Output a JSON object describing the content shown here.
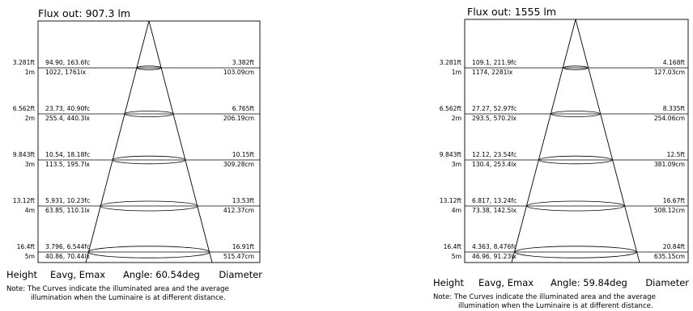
{
  "footer_labels": {
    "height": "Height",
    "eavg_emax": "Eavg, Emax",
    "diameter": "Diameter"
  },
  "note": {
    "line1": "Note: The Curves indicate the illuminated area and the average",
    "line2": "illumination when the Luminaire is at different distance."
  },
  "diagrams": [
    {
      "flux_label": "Flux out: 907.3 lm",
      "angle_label": "Angle: 60.54deg",
      "rows": [
        {
          "height_ft": "3.281ft",
          "height_m": "1m",
          "fc": "94.90, 163.6fc",
          "lx": "1022, 1761lx",
          "dia_ft": "3.382ft",
          "dia_cm": "103.09cm"
        },
        {
          "height_ft": "6.562ft",
          "height_m": "2m",
          "fc": "23.73, 40.90fc",
          "lx": "255.4, 440.3lx",
          "dia_ft": "6.765ft",
          "dia_cm": "206.19cm"
        },
        {
          "height_ft": "9.843ft",
          "height_m": "3m",
          "fc": "10.54, 18.18fc",
          "lx": "113.5, 195.7lx",
          "dia_ft": "10.15ft",
          "dia_cm": "309.28cm"
        },
        {
          "height_ft": "13.12ft",
          "height_m": "4m",
          "fc": "5.931, 10.23fc",
          "lx": "63.85, 110.1lx",
          "dia_ft": "13.53ft",
          "dia_cm": "412.37cm"
        },
        {
          "height_ft": "16.4ft",
          "height_m": "5m",
          "fc": "3.796, 6.544fc",
          "lx": "40.86, 70.44lx",
          "dia_ft": "16.91ft",
          "dia_cm": "515.47cm"
        }
      ]
    },
    {
      "flux_label": "Flux out: 1555 lm",
      "angle_label": "Angle: 59.84deg",
      "rows": [
        {
          "height_ft": "3.281ft",
          "height_m": "1m",
          "fc": "109.1, 211.9fc",
          "lx": "1174, 2281lx",
          "dia_ft": "4.168ft",
          "dia_cm": "127.03cm"
        },
        {
          "height_ft": "6.562ft",
          "height_m": "2m",
          "fc": "27.27, 52.97fc",
          "lx": "293.5, 570.2lx",
          "dia_ft": "8.335ft",
          "dia_cm": "254.06cm"
        },
        {
          "height_ft": "9.843ft",
          "height_m": "3m",
          "fc": "12.12, 23.54fc",
          "lx": "130.4, 253.4lx",
          "dia_ft": "12.5ft",
          "dia_cm": "381.09cm"
        },
        {
          "height_ft": "13.12ft",
          "height_m": "4m",
          "fc": "6.817, 13.24fc",
          "lx": "73.38, 142.5lx",
          "dia_ft": "16.67ft",
          "dia_cm": "508.12cm"
        },
        {
          "height_ft": "16.4ft",
          "height_m": "5m",
          "fc": "4.363, 8.476fc",
          "lx": "46.96, 91.23lx",
          "dia_ft": "20.84ft",
          "dia_cm": "635.15cm"
        }
      ]
    }
  ]
}
